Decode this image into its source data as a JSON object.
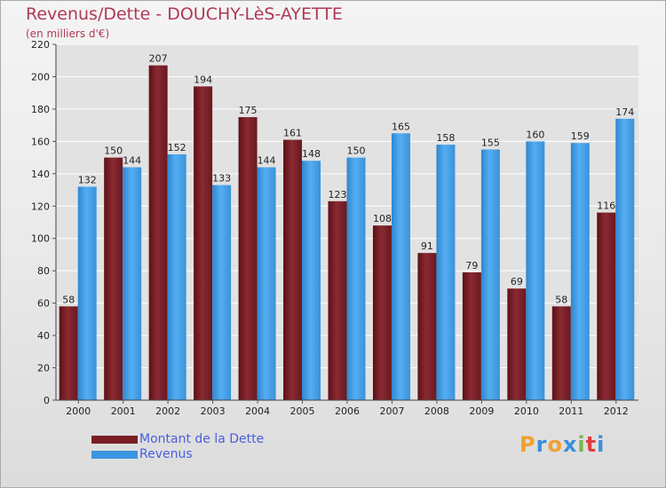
{
  "title": "Revenus/Dette - DOUCHY-LèS-AYETTE",
  "subtitle": "(en milliers d'€)",
  "brand": {
    "letters": [
      "P",
      "r",
      "o",
      "x",
      "i",
      "t",
      "i"
    ],
    "colors": [
      "#f0a030",
      "#3a8fd8",
      "#f0a030",
      "#3a8fd8",
      "#7ab648",
      "#e04040",
      "#3a8fd8"
    ]
  },
  "colors": {
    "dette": "#7a1e26",
    "revenus": "#3c96de",
    "label_text": "#4a5fe0",
    "title_text": "#b03a57"
  },
  "legend": {
    "position": "bottom-left",
    "items": [
      {
        "label": "Montant de la Dette",
        "color": "#7a1e26"
      },
      {
        "label": "Revenus",
        "color": "#3c96de"
      }
    ]
  },
  "chart_data": {
    "type": "bar",
    "title": "Revenus/Dette - DOUCHY-LèS-AYETTE",
    "subtitle": "(en milliers d'€)",
    "xlabel": "",
    "ylabel": "",
    "ylim": [
      0,
      220
    ],
    "yticks": [
      0,
      20,
      40,
      60,
      80,
      100,
      120,
      140,
      160,
      180,
      200,
      220
    ],
    "grid": true,
    "categories": [
      "2000",
      "2001",
      "2002",
      "2003",
      "2004",
      "2005",
      "2006",
      "2007",
      "2008",
      "2009",
      "2010",
      "2011",
      "2012"
    ],
    "series": [
      {
        "name": "Montant de la Dette",
        "color": "#7a1e26",
        "values": [
          58,
          150,
          207,
          194,
          175,
          161,
          123,
          108,
          91,
          79,
          69,
          58,
          116
        ]
      },
      {
        "name": "Revenus",
        "color": "#3c96de",
        "values": [
          132,
          144,
          152,
          133,
          144,
          148,
          150,
          165,
          158,
          155,
          160,
          159,
          174
        ]
      }
    ]
  }
}
